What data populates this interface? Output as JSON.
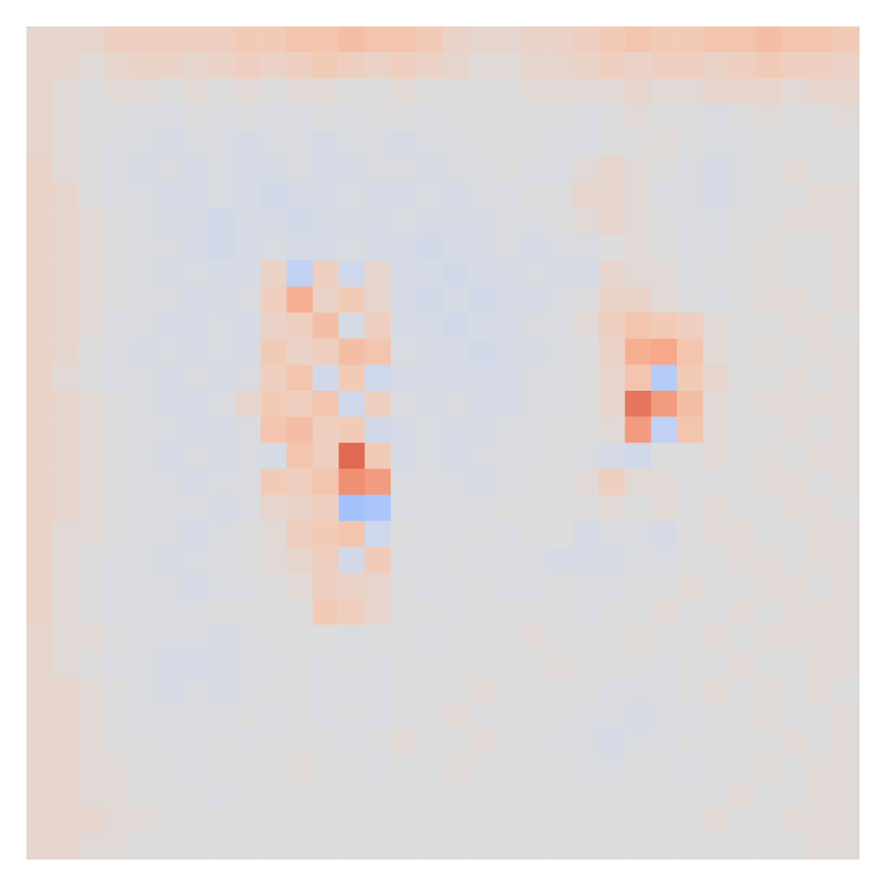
{
  "chart_data": {
    "type": "heatmap",
    "tick_labels": false,
    "zlim": [
      -1,
      1
    ],
    "cells": [
      [
        0.1,
        0.1,
        0.1,
        0.2,
        0.2,
        0.2,
        0.2,
        0.2,
        0.25,
        0.25,
        0.3,
        0.3,
        0.35,
        0.3,
        0.3,
        0.25,
        0.15,
        0.1,
        0.1,
        0.15,
        0.15,
        0.2,
        0.25,
        0.3,
        0.25,
        0.25,
        0.3,
        0.3,
        0.35,
        0.3,
        0.3,
        0.25
      ],
      [
        0.1,
        0.1,
        0.05,
        0.1,
        0.15,
        0.15,
        0.1,
        0.15,
        0.2,
        0.15,
        0.2,
        0.25,
        0.2,
        0.15,
        0.2,
        0.15,
        0.1,
        0.05,
        0.05,
        0.1,
        0.1,
        0.15,
        0.2,
        0.15,
        0.2,
        0.2,
        0.15,
        0.2,
        0.25,
        0.2,
        0.2,
        0.15
      ],
      [
        0.1,
        0.05,
        0,
        0.05,
        0.05,
        0,
        0.05,
        0,
        0.05,
        0,
        0.05,
        0.05,
        0,
        0,
        0.05,
        0,
        0,
        0,
        0,
        0.05,
        0.05,
        0.05,
        0.05,
        0.1,
        0.05,
        0.05,
        0.1,
        0.1,
        0.1,
        0.05,
        0.1,
        0.1
      ],
      [
        0.1,
        0.05,
        0,
        0,
        -0.05,
        -0.05,
        0,
        -0.05,
        0,
        -0.05,
        -0.05,
        0,
        -0.05,
        0,
        0,
        -0.05,
        0,
        0,
        0,
        0,
        0,
        -0.05,
        0,
        0.05,
        0,
        0,
        -0.05,
        0,
        0.05,
        0,
        0,
        0.05
      ],
      [
        0.1,
        0.05,
        0,
        -0.05,
        -0.05,
        -0.1,
        -0.05,
        -0.05,
        -0.1,
        -0.05,
        -0.05,
        -0.1,
        -0.05,
        -0.05,
        -0.1,
        -0.05,
        -0.05,
        0,
        0,
        0,
        -0.05,
        -0.05,
        0,
        0,
        0.05,
        0,
        -0.05,
        -0.05,
        0,
        0,
        0,
        0
      ],
      [
        0.15,
        0.05,
        0,
        -0.05,
        -0.1,
        -0.05,
        -0.1,
        -0.05,
        -0.1,
        -0.1,
        -0.05,
        -0.1,
        -0.1,
        -0.05,
        -0.05,
        -0.1,
        -0.05,
        -0.05,
        0,
        -0.05,
        -0.05,
        0.05,
        0.1,
        0.05,
        0,
        -0.05,
        -0.1,
        -0.05,
        0,
        0.05,
        0,
        0
      ],
      [
        0.15,
        0.1,
        0,
        -0.05,
        -0.05,
        -0.1,
        -0.1,
        -0.05,
        -0.1,
        -0.15,
        -0.1,
        -0.1,
        -0.05,
        -0.1,
        -0.1,
        -0.05,
        -0.1,
        -0.05,
        -0.05,
        0,
        0,
        0.1,
        0.1,
        0.05,
        -0.05,
        -0.05,
        -0.1,
        -0.05,
        0,
        0,
        0.05,
        0.05
      ],
      [
        0.15,
        0.1,
        0.05,
        0,
        -0.05,
        -0.1,
        -0.1,
        -0.15,
        -0.1,
        -0.1,
        -0.15,
        -0.1,
        -0.1,
        -0.1,
        -0.05,
        -0.1,
        -0.1,
        -0.1,
        -0.05,
        -0.05,
        0,
        0.05,
        0.1,
        0.05,
        0,
        -0.05,
        -0.05,
        0,
        0,
        0.05,
        0.05,
        0.05
      ],
      [
        0.15,
        0.1,
        0.05,
        0,
        -0.05,
        -0.05,
        -0.1,
        -0.15,
        -0.1,
        -0.05,
        -0.1,
        -0.1,
        -0.05,
        -0.1,
        -0.1,
        -0.15,
        -0.1,
        -0.1,
        -0.05,
        -0.1,
        -0.05,
        -0.05,
        0,
        0.05,
        0,
        -0.05,
        -0.05,
        0,
        0.05,
        0,
        0,
        0.05
      ],
      [
        0.15,
        0.1,
        0.05,
        0,
        -0.05,
        -0.1,
        -0.05,
        -0.1,
        -0.1,
        0.15,
        -0.3,
        0.2,
        -0.2,
        0.1,
        -0.1,
        -0.1,
        -0.15,
        -0.1,
        -0.1,
        -0.05,
        -0.1,
        -0.1,
        0.1,
        0.05,
        0.05,
        -0.05,
        0,
        0,
        0.05,
        0,
        0,
        0.05
      ],
      [
        0.15,
        0.1,
        0.05,
        0,
        -0.05,
        -0.05,
        -0.1,
        -0.1,
        -0.05,
        0.2,
        0.45,
        0.15,
        0.25,
        0.1,
        -0.1,
        -0.15,
        -0.1,
        -0.15,
        -0.1,
        -0.1,
        -0.05,
        0,
        0.15,
        0.15,
        0.05,
        0,
        -0.05,
        0,
        0.05,
        0.05,
        0,
        0.05
      ],
      [
        0.15,
        0.1,
        0.05,
        -0.05,
        -0.05,
        -0.1,
        -0.1,
        -0.05,
        -0.1,
        0.15,
        0.2,
        0.35,
        -0.1,
        0.2,
        -0.1,
        -0.1,
        -0.15,
        -0.1,
        -0.1,
        -0.05,
        -0.05,
        0.05,
        0.2,
        0.3,
        0.25,
        0.2,
        0.05,
        0,
        0,
        0.05,
        0.05,
        0
      ],
      [
        0.15,
        0.1,
        0,
        -0.05,
        -0.1,
        -0.05,
        -0.1,
        -0.05,
        -0.1,
        0.25,
        0.15,
        0.2,
        0.35,
        0.3,
        -0.05,
        -0.1,
        -0.1,
        -0.15,
        -0.1,
        -0.1,
        -0.05,
        0,
        0.15,
        0.45,
        0.5,
        0.3,
        0.05,
        0,
        0.05,
        0,
        0.05,
        0.05
      ],
      [
        0.15,
        0.05,
        0,
        -0.05,
        -0.05,
        -0.1,
        -0.05,
        -0.1,
        -0.05,
        0.2,
        0.3,
        -0.15,
        0.25,
        -0.2,
        -0.1,
        -0.1,
        -0.1,
        -0.1,
        -0.1,
        -0.05,
        -0.05,
        0,
        0.1,
        0.3,
        -0.35,
        0.25,
        0.1,
        0,
        0,
        0.05,
        0,
        0.05
      ],
      [
        0.15,
        0.1,
        0.05,
        0,
        -0.05,
        -0.1,
        -0.1,
        -0.05,
        0.1,
        0.25,
        0.2,
        0.3,
        -0.2,
        0.2,
        -0.05,
        -0.1,
        -0.05,
        -0.1,
        -0.1,
        -0.05,
        -0.05,
        0,
        0.1,
        0.7,
        0.55,
        0.35,
        0.05,
        0,
        0.05,
        0.05,
        0.05,
        0.05
      ],
      [
        0.15,
        0.1,
        0.05,
        0,
        -0.05,
        -0.05,
        -0.1,
        -0.1,
        -0.05,
        0.3,
        0.35,
        0.2,
        0.25,
        -0.15,
        -0.1,
        -0.05,
        -0.1,
        -0.1,
        -0.05,
        -0.05,
        0,
        0,
        0.05,
        0.55,
        -0.3,
        0.3,
        0.05,
        0,
        0,
        0.05,
        0,
        0.05
      ],
      [
        0.15,
        0.1,
        0.05,
        0,
        -0.05,
        -0.1,
        -0.05,
        -0.1,
        -0.05,
        -0.1,
        0.3,
        0.2,
        0.75,
        0.25,
        -0.1,
        -0.05,
        -0.1,
        -0.05,
        -0.05,
        -0.05,
        0,
        -0.05,
        -0.1,
        -0.15,
        0,
        0,
        0.05,
        0,
        0.05,
        0,
        0.05,
        0.05
      ],
      [
        0.15,
        0.1,
        0.05,
        0,
        -0.05,
        -0.05,
        -0.1,
        -0.05,
        -0.05,
        0.25,
        0.2,
        0.3,
        0.6,
        0.55,
        -0.05,
        -0.05,
        -0.05,
        -0.1,
        -0.05,
        0,
        0,
        0.05,
        0.2,
        0.05,
        0.05,
        0,
        0,
        0,
        0.05,
        0.05,
        0,
        0.05
      ],
      [
        0.15,
        0.1,
        0.05,
        0,
        -0.05,
        -0.05,
        -0.05,
        -0.1,
        -0.05,
        0.1,
        0.15,
        0.2,
        -0.45,
        -0.4,
        -0.05,
        -0.05,
        -0.05,
        -0.05,
        0,
        0,
        0,
        0,
        0.05,
        0,
        0.05,
        0,
        0.05,
        0,
        0,
        0.05,
        0.05,
        0
      ],
      [
        0.15,
        0.05,
        0.05,
        0,
        -0.05,
        -0.05,
        -0.1,
        -0.05,
        0,
        0.05,
        0.2,
        0.25,
        0.3,
        -0.2,
        0,
        -0.05,
        -0.05,
        0,
        -0.05,
        0,
        0,
        -0.1,
        -0.05,
        -0.05,
        -0.1,
        0,
        0.05,
        0.05,
        0,
        0,
        0.05,
        0.05
      ],
      [
        0.15,
        0.05,
        0,
        -0.05,
        -0.05,
        -0.1,
        -0.05,
        -0.05,
        0,
        0.05,
        0.1,
        0.2,
        -0.15,
        0.25,
        -0.05,
        -0.05,
        0,
        -0.05,
        -0.05,
        -0.05,
        -0.1,
        -0.1,
        -0.1,
        -0.05,
        -0.05,
        0,
        0,
        0.05,
        0.05,
        0,
        0.05,
        0.05
      ],
      [
        0.15,
        0.05,
        0,
        -0.05,
        -0.05,
        -0.05,
        -0.1,
        -0.05,
        -0.05,
        0,
        0.05,
        0.2,
        0.15,
        0.1,
        0,
        -0.05,
        -0.05,
        0,
        -0.05,
        -0.05,
        0,
        -0.05,
        -0.05,
        0,
        0,
        0.05,
        0,
        0,
        0.05,
        0.05,
        0,
        0.05
      ],
      [
        0.15,
        0.05,
        0,
        -0.05,
        -0.05,
        -0.05,
        -0.05,
        0,
        0,
        0,
        0,
        0.25,
        0.2,
        0.1,
        0,
        0,
        -0.05,
        0,
        0,
        0,
        0,
        -0.05,
        0,
        0,
        0.05,
        0,
        0,
        0.05,
        0,
        0.05,
        0.05,
        0.05
      ],
      [
        0.1,
        0.05,
        0.05,
        0,
        -0.05,
        -0.05,
        -0.05,
        -0.1,
        -0.05,
        0,
        0,
        0,
        -0.05,
        0,
        0,
        -0.05,
        0,
        0,
        0,
        0.05,
        0,
        0,
        0,
        0.05,
        0,
        0,
        0.05,
        0,
        0.05,
        0.05,
        0.05,
        0.05
      ],
      [
        0.1,
        0.05,
        0,
        -0.05,
        -0.05,
        -0.1,
        -0.1,
        -0.1,
        -0.05,
        -0.05,
        0,
        -0.05,
        0,
        -0.05,
        0,
        0,
        0,
        0,
        0,
        0,
        0.05,
        0,
        0,
        0,
        -0.05,
        0,
        0,
        0.05,
        0,
        0,
        0.05,
        0.05
      ],
      [
        0.1,
        0.1,
        0.05,
        0,
        -0.05,
        -0.1,
        -0.05,
        -0.1,
        -0.05,
        0,
        0,
        -0.05,
        -0.05,
        -0.05,
        0,
        0,
        0,
        0.05,
        0,
        0,
        0,
        0,
        -0.05,
        -0.05,
        -0.05,
        0,
        0.05,
        0,
        0.05,
        0,
        0.05,
        0
      ],
      [
        0.1,
        0.1,
        0.05,
        0,
        -0.05,
        -0.05,
        -0.05,
        -0.05,
        0,
        -0.05,
        0,
        -0.05,
        0,
        -0.05,
        0,
        0,
        0.05,
        0,
        0,
        0,
        0,
        -0.05,
        -0.05,
        -0.1,
        -0.05,
        -0.05,
        0,
        0,
        0.05,
        0,
        0,
        0.05
      ],
      [
        0.1,
        0.1,
        0.05,
        0,
        0,
        -0.05,
        -0.05,
        0,
        -0.05,
        0,
        0,
        0,
        -0.05,
        0,
        0.05,
        0,
        0,
        0.05,
        0,
        0,
        -0.05,
        -0.05,
        -0.1,
        -0.05,
        -0.05,
        0,
        0,
        0,
        0,
        0.05,
        0,
        0.05
      ],
      [
        0.1,
        0.1,
        0.05,
        0.05,
        0,
        0,
        -0.05,
        0,
        0,
        0,
        0.05,
        0,
        0,
        -0.05,
        0,
        0,
        0.05,
        0,
        0,
        0,
        0,
        -0.05,
        -0.05,
        0,
        0,
        -0.05,
        0,
        0,
        0.05,
        0,
        0.05,
        0.05
      ],
      [
        0.1,
        0.1,
        0.05,
        0.05,
        0,
        0,
        0,
        -0.05,
        0,
        0,
        0,
        0,
        0,
        0,
        0,
        0,
        0,
        0,
        0,
        0,
        0,
        0,
        0,
        0,
        0,
        0,
        0,
        0.05,
        0,
        0,
        0.05,
        0.05
      ],
      [
        0.1,
        0.1,
        0.1,
        0.05,
        0.05,
        0,
        0,
        0,
        0,
        0,
        0,
        0,
        0,
        0,
        0,
        0,
        0,
        0,
        0,
        0,
        0,
        0,
        0,
        0,
        0,
        0,
        0.05,
        0,
        0,
        0.05,
        0.05,
        0.05
      ],
      [
        0.1,
        0.1,
        0.05,
        0.05,
        0,
        0,
        0,
        0,
        0,
        0,
        0,
        0,
        0,
        0,
        0,
        0,
        0,
        0,
        0,
        0,
        0,
        0,
        0,
        0,
        0,
        0,
        0,
        0,
        0,
        0,
        0.05,
        0.05
      ]
    ]
  }
}
